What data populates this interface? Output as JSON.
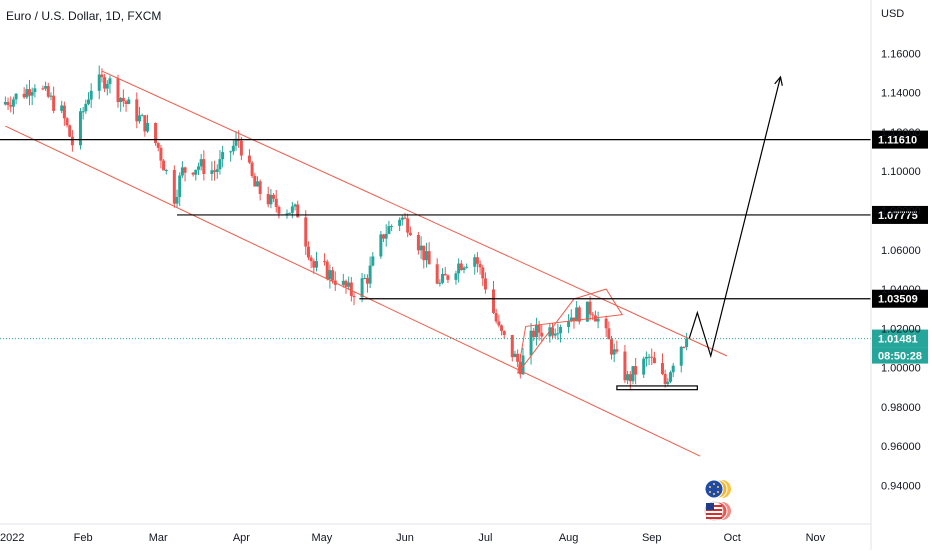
{
  "chart_data": {
    "type": "candlestick",
    "title": "Euro / U.S. Dollar, 1D, FXCM",
    "currency_label": "USD",
    "y_axis": {
      "ylim": [
        0.925,
        1.178
      ],
      "ticks": [
        "0.94000",
        "0.96000",
        "0.98000",
        "1.00000",
        "1.02000",
        "1.04000",
        "1.06000",
        "1.08000",
        "1.10000",
        "1.12000",
        "1.14000",
        "1.16000"
      ]
    },
    "x_axis": {
      "start_date": "2022-01-01",
      "end_date": "2022-11-21",
      "ticks": [
        {
          "label": "2022",
          "date": "2022-01-01"
        },
        {
          "label": "Feb",
          "date": "2022-02-01"
        },
        {
          "label": "Mar",
          "date": "2022-03-01"
        },
        {
          "label": "Apr",
          "date": "2022-04-01"
        },
        {
          "label": "May",
          "date": "2022-05-01"
        },
        {
          "label": "Jun",
          "date": "2022-06-01"
        },
        {
          "label": "Jul",
          "date": "2022-07-01"
        },
        {
          "label": "Aug",
          "date": "2022-08-01"
        },
        {
          "label": "Sep",
          "date": "2022-09-01"
        },
        {
          "label": "Oct",
          "date": "2022-10-01"
        },
        {
          "label": "Nov",
          "date": "2022-11-01"
        }
      ]
    },
    "price_path": [
      [
        "2022-01-01",
        1.134
      ],
      [
        "2022-01-10",
        1.14
      ],
      [
        "2022-01-14",
        1.145
      ],
      [
        "2022-01-24",
        1.13
      ],
      [
        "2022-01-28",
        1.114
      ],
      [
        "2022-02-04",
        1.143
      ],
      [
        "2022-02-10",
        1.147
      ],
      [
        "2022-02-16",
        1.136
      ],
      [
        "2022-02-24",
        1.124
      ],
      [
        "2022-03-01",
        1.112
      ],
      [
        "2022-03-07",
        1.087
      ],
      [
        "2022-03-10",
        1.1
      ],
      [
        "2022-03-16",
        1.103
      ],
      [
        "2022-03-22",
        1.1
      ],
      [
        "2022-03-31",
        1.116
      ],
      [
        "2022-04-06",
        1.092
      ],
      [
        "2022-04-13",
        1.083
      ],
      [
        "2022-04-22",
        1.079
      ],
      [
        "2022-04-28",
        1.051
      ],
      [
        "2022-05-02",
        1.05
      ],
      [
        "2022-05-12",
        1.038
      ],
      [
        "2022-05-18",
        1.046
      ],
      [
        "2022-05-24",
        1.068
      ],
      [
        "2022-05-30",
        1.077
      ],
      [
        "2022-06-03",
        1.072
      ],
      [
        "2022-06-10",
        1.052
      ],
      [
        "2022-06-14",
        1.042
      ],
      [
        "2022-06-20",
        1.052
      ],
      [
        "2022-06-27",
        1.057
      ],
      [
        "2022-07-01",
        1.042
      ],
      [
        "2022-07-06",
        1.019
      ],
      [
        "2022-07-12",
        1.005
      ],
      [
        "2022-07-14",
        1.001
      ],
      [
        "2022-07-19",
        1.018
      ],
      [
        "2022-07-26",
        1.02
      ],
      [
        "2022-08-01",
        1.026
      ],
      [
        "2022-08-10",
        1.03
      ],
      [
        "2022-08-15",
        1.016
      ],
      [
        "2022-08-19",
        1.004
      ],
      [
        "2022-08-23",
        0.994
      ],
      [
        "2022-08-31",
        1.005
      ],
      [
        "2022-09-06",
        0.992
      ],
      [
        "2022-09-09",
        1.004
      ],
      [
        "2022-09-12",
        1.012
      ],
      [
        "2022-09-14",
        1.0148
      ]
    ],
    "levels": [
      {
        "value": 1.1161,
        "label": "1.11610",
        "from_date": "2022-01-01"
      },
      {
        "value": 1.07775,
        "label": "1.07775",
        "from_date": "2022-03-08"
      },
      {
        "value": 1.03509,
        "label": "1.03509",
        "from_date": "2022-05-15"
      }
    ],
    "current_price": {
      "value": 1.01481,
      "label": "1.01481",
      "countdown": "08:50:28"
    },
    "channel": {
      "upper": [
        [
          "2022-02-08",
          1.151
        ],
        [
          "2022-09-29",
          1.006
        ]
      ],
      "lower": [
        [
          "2022-01-03",
          1.123
        ],
        [
          "2022-09-19",
          0.955
        ]
      ]
    },
    "flag": [
      [
        "2022-07-13",
        0.997
      ],
      [
        "2022-08-03",
        1.035
      ],
      [
        "2022-08-15",
        1.04
      ],
      [
        "2022-08-21",
        1.027
      ],
      [
        "2022-07-16",
        1.021
      ],
      [
        "2022-07-13",
        0.997
      ]
    ],
    "support_box": {
      "from_date": "2022-08-19",
      "to_date": "2022-09-18",
      "low": 0.9888,
      "high": 0.9907
    },
    "projection": [
      [
        "2022-09-15",
        1.015
      ],
      [
        "2022-09-18",
        1.028
      ],
      [
        "2022-09-23",
        1.006
      ],
      [
        "2022-10-19",
        1.148
      ]
    ],
    "colors": {
      "up": "#26a69a",
      "down": "#ef5350",
      "channel": "#f05a4a",
      "level": "#000000",
      "price_label": "#26a69a",
      "countdown_bg": "#26a69a",
      "grid": "#ffffff"
    }
  }
}
